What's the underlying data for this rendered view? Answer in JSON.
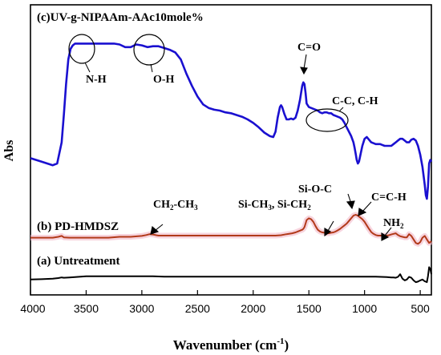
{
  "chart_data": {
    "type": "line",
    "xlabel_main": "Wavenumber (cm",
    "xlabel_sup": "-1",
    "xlabel_tail": ")",
    "ylabel": "Abs",
    "xlim": [
      4000,
      400
    ],
    "x_reversed": true,
    "x_ticks": [
      4000,
      3500,
      3000,
      2500,
      2000,
      1500,
      1000,
      500
    ],
    "y_ticks_shown": false,
    "series": [
      {
        "name": "(c)UV-g-NIPAAm-AAc10mole%",
        "color": "#1a10d0",
        "x": [
          4000,
          3900,
          3800,
          3760,
          3720,
          3700,
          3680,
          3660,
          3640,
          3620,
          3600,
          3580,
          3550,
          3500,
          3450,
          3400,
          3350,
          3300,
          3250,
          3200,
          3150,
          3100,
          3050,
          3000,
          2950,
          2900,
          2850,
          2800,
          2750,
          2700,
          2650,
          2600,
          2550,
          2500,
          2450,
          2400,
          2350,
          2300,
          2250,
          2200,
          2150,
          2100,
          2050,
          2000,
          1950,
          1900,
          1850,
          1820,
          1800,
          1780,
          1760,
          1750,
          1740,
          1720,
          1700,
          1680,
          1660,
          1640,
          1620,
          1600,
          1580,
          1560,
          1550,
          1540,
          1530,
          1520,
          1500,
          1480,
          1460,
          1440,
          1420,
          1400,
          1380,
          1360,
          1340,
          1320,
          1300,
          1280,
          1260,
          1240,
          1220,
          1200,
          1180,
          1160,
          1140,
          1120,
          1100,
          1090,
          1080,
          1070,
          1060,
          1050,
          1040,
          1020,
          1000,
          980,
          960,
          940,
          920,
          900,
          880,
          860,
          840,
          820,
          800,
          780,
          760,
          740,
          720,
          700,
          680,
          660,
          640,
          620,
          600,
          580,
          560,
          540,
          520,
          500,
          480,
          460,
          450,
          440,
          430,
          420,
          410,
          400
        ],
        "y": [
          0.33,
          0.31,
          0.29,
          0.3,
          0.42,
          0.58,
          0.75,
          0.89,
          0.95,
          0.97,
          0.98,
          0.98,
          0.98,
          0.98,
          0.98,
          0.98,
          0.98,
          0.98,
          0.98,
          0.975,
          0.96,
          0.96,
          0.975,
          0.97,
          0.96,
          0.965,
          0.965,
          0.955,
          0.945,
          0.93,
          0.89,
          0.81,
          0.74,
          0.68,
          0.635,
          0.615,
          0.605,
          0.6,
          0.59,
          0.585,
          0.575,
          0.565,
          0.55,
          0.53,
          0.505,
          0.475,
          0.455,
          0.45,
          0.48,
          0.56,
          0.62,
          0.63,
          0.62,
          0.58,
          0.55,
          0.55,
          0.555,
          0.55,
          0.56,
          0.6,
          0.66,
          0.74,
          0.76,
          0.75,
          0.7,
          0.64,
          0.62,
          0.615,
          0.61,
          0.605,
          0.6,
          0.59,
          0.585,
          0.59,
          0.59,
          0.585,
          0.585,
          0.575,
          0.57,
          0.565,
          0.56,
          0.55,
          0.53,
          0.505,
          0.48,
          0.455,
          0.42,
          0.39,
          0.355,
          0.32,
          0.3,
          0.31,
          0.34,
          0.4,
          0.44,
          0.45,
          0.435,
          0.42,
          0.415,
          0.41,
          0.41,
          0.41,
          0.405,
          0.4,
          0.4,
          0.4,
          0.4,
          0.41,
          0.42,
          0.43,
          0.44,
          0.44,
          0.43,
          0.42,
          0.42,
          0.435,
          0.44,
          0.43,
          0.4,
          0.35,
          0.28,
          0.18,
          0.12,
          0.1,
          0.17,
          0.3,
          0.32,
          0.31
        ]
      },
      {
        "name": "(b) PD-HMDSZ",
        "color": "#b23a1a",
        "x": [
          4000,
          3900,
          3800,
          3750,
          3720,
          3700,
          3650,
          3600,
          3500,
          3400,
          3300,
          3200,
          3100,
          3000,
          2960,
          2930,
          2900,
          2870,
          2850,
          2800,
          2700,
          2600,
          2500,
          2400,
          2300,
          2200,
          2100,
          2000,
          1900,
          1800,
          1750,
          1700,
          1650,
          1620,
          1600,
          1580,
          1560,
          1550,
          1540,
          1530,
          1520,
          1500,
          1480,
          1460,
          1440,
          1420,
          1400,
          1380,
          1360,
          1340,
          1320,
          1300,
          1280,
          1260,
          1240,
          1220,
          1200,
          1180,
          1160,
          1140,
          1120,
          1100,
          1080,
          1060,
          1040,
          1020,
          1000,
          980,
          960,
          940,
          920,
          900,
          880,
          860,
          840,
          820,
          800,
          780,
          760,
          740,
          720,
          700,
          680,
          660,
          640,
          620,
          600,
          580,
          560,
          540,
          520,
          500,
          480,
          460,
          440,
          420,
          400
        ],
        "y": [
          0.22,
          0.22,
          0.22,
          0.225,
          0.23,
          0.222,
          0.22,
          0.22,
          0.22,
          0.22,
          0.22,
          0.225,
          0.225,
          0.23,
          0.235,
          0.24,
          0.238,
          0.234,
          0.232,
          0.232,
          0.232,
          0.232,
          0.232,
          0.232,
          0.232,
          0.232,
          0.232,
          0.232,
          0.232,
          0.232,
          0.234,
          0.24,
          0.245,
          0.25,
          0.255,
          0.26,
          0.265,
          0.27,
          0.28,
          0.3,
          0.32,
          0.33,
          0.325,
          0.31,
          0.285,
          0.265,
          0.255,
          0.25,
          0.248,
          0.245,
          0.245,
          0.248,
          0.25,
          0.255,
          0.262,
          0.27,
          0.28,
          0.29,
          0.3,
          0.315,
          0.33,
          0.345,
          0.35,
          0.345,
          0.335,
          0.325,
          0.31,
          0.29,
          0.27,
          0.252,
          0.242,
          0.235,
          0.232,
          0.232,
          0.232,
          0.232,
          0.232,
          0.234,
          0.238,
          0.242,
          0.245,
          0.235,
          0.228,
          0.225,
          0.222,
          0.222,
          0.24,
          0.23,
          0.21,
          0.19,
          0.185,
          0.195,
          0.22,
          0.23,
          0.21,
          0.19,
          0.2
        ]
      },
      {
        "name": "(a) Untreatment",
        "color": "#000000",
        "x": [
          4000,
          3900,
          3800,
          3750,
          3720,
          3700,
          3650,
          3600,
          3500,
          3400,
          3300,
          3200,
          3100,
          3000,
          2900,
          2800,
          2700,
          2600,
          2500,
          2400,
          2300,
          2200,
          2100,
          2000,
          1900,
          1800,
          1700,
          1600,
          1500,
          1400,
          1300,
          1200,
          1100,
          1000,
          900,
          800,
          760,
          740,
          720,
          700,
          680,
          660,
          640,
          620,
          600,
          580,
          560,
          540,
          520,
          500,
          480,
          460,
          440,
          430,
          420,
          410,
          400
        ],
        "y": [
          0.06,
          0.062,
          0.065,
          0.068,
          0.072,
          0.07,
          0.072,
          0.074,
          0.078,
          0.078,
          0.078,
          0.078,
          0.078,
          0.078,
          0.078,
          0.076,
          0.076,
          0.076,
          0.076,
          0.076,
          0.076,
          0.076,
          0.076,
          0.076,
          0.076,
          0.076,
          0.076,
          0.076,
          0.076,
          0.076,
          0.076,
          0.076,
          0.076,
          0.076,
          0.076,
          0.074,
          0.072,
          0.072,
          0.07,
          0.075,
          0.09,
          0.065,
          0.055,
          0.06,
          0.075,
          0.07,
          0.055,
          0.045,
          0.048,
          0.055,
          0.06,
          0.05,
          0.045,
          0.08,
          0.13,
          0.12,
          0.09
        ]
      }
    ],
    "annotations": {
      "nh": "N-H",
      "oh": "O-H",
      "co": "C=O",
      "cc": "C-C, C-H",
      "ch2ch3_a": "CH",
      "ch2ch3_s1": "2",
      "ch2ch3_b": "-CH",
      "ch2ch3_s2": "3",
      "sich_a": "Si-CH",
      "sich_s1": "3",
      "sich_b": ", Si-CH",
      "sich_s2": "2",
      "sioc": "Si-O-C",
      "cch": "C=C-H",
      "nh2_a": "NH",
      "nh2_s": "2"
    }
  }
}
